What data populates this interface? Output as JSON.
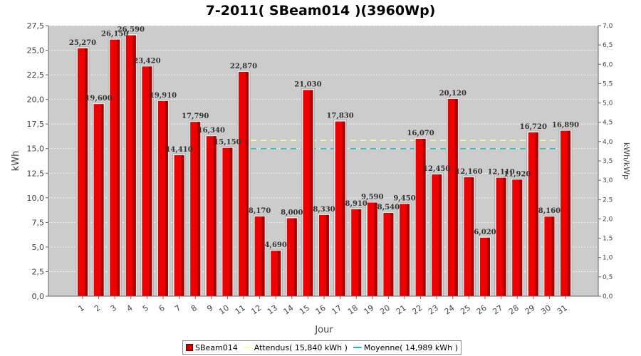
{
  "colors": {
    "bar": "#ee0000",
    "bar_dark": "#a80000",
    "plot_bg": "#cccccc",
    "expected_line": "#ffff99",
    "average_line": "#22bbbb"
  },
  "legend": {
    "bar_label": "SBeam014",
    "expected_label": "Attendus( 15,840 kWh )",
    "average_label": "Moyenne( 14,989 kWh )"
  },
  "chart_data": {
    "type": "bar",
    "title": "7-2011( SBeam014 )(3960Wp)",
    "xlabel": "Jour",
    "ylabel": "kWh",
    "y2label": "kWh/kWp",
    "ylim": [
      0,
      27.5
    ],
    "y2lim": [
      0,
      7.0
    ],
    "yticks": [
      "0,0",
      "2,5",
      "5,0",
      "7,5",
      "10,0",
      "12,5",
      "15,0",
      "17,5",
      "20,0",
      "22,5",
      "25,0",
      "27,5"
    ],
    "y2ticks": [
      "0,0",
      "0,5",
      "1,0",
      "1,5",
      "2,0",
      "2,5",
      "3,0",
      "3,5",
      "4,0",
      "4,5",
      "5,0",
      "5,5",
      "6,0",
      "6,5",
      "7,0"
    ],
    "categories": [
      "1",
      "2",
      "3",
      "4",
      "5",
      "6",
      "7",
      "8",
      "9",
      "10",
      "11",
      "12",
      "13",
      "14",
      "15",
      "16",
      "17",
      "18",
      "19",
      "20",
      "21",
      "22",
      "23",
      "24",
      "25",
      "26",
      "27",
      "28",
      "29",
      "30",
      "31"
    ],
    "values": [
      25.27,
      19.6,
      26.15,
      26.59,
      23.42,
      19.91,
      14.41,
      17.79,
      16.34,
      15.15,
      22.87,
      8.17,
      4.69,
      8.0,
      21.03,
      8.33,
      17.83,
      8.91,
      9.59,
      8.54,
      9.45,
      16.07,
      12.45,
      20.12,
      12.16,
      6.02,
      12.11,
      11.92,
      16.72,
      8.16,
      16.89
    ],
    "value_labels": [
      "25,270",
      "19,600",
      "26,150",
      "26,590",
      "23,420",
      "19,910",
      "14,410",
      "17,790",
      "16,340",
      "15,150",
      "22,870",
      "8,170",
      "4,690",
      "8,000",
      "21,030",
      "8,330",
      "17,830",
      "8,910",
      "9,590",
      "8,540",
      "9,450",
      "16,070",
      "12,450",
      "20,120",
      "12,160",
      "6,020",
      "12,110",
      "11,920",
      "16,720",
      "8,160",
      "16,890"
    ],
    "expected_value": 15.84,
    "average_value": 14.989,
    "grid": true,
    "legend_position": "bottom"
  }
}
